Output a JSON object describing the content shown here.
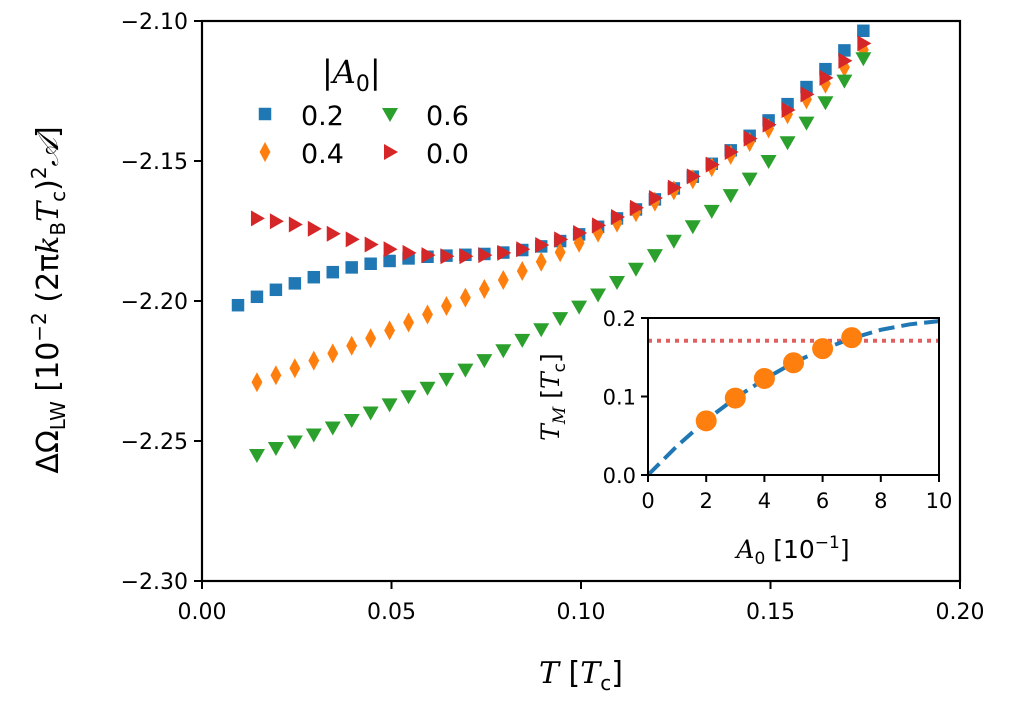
{
  "chart_data": [
    {
      "type": "scatter",
      "title": "",
      "xlabel": "T [T_c]",
      "ylabel": "ΔΩ_LW [10^−2 (2πk_B T_c)^2 𝒜]",
      "xlim": [
        0.0,
        0.2
      ],
      "ylim": [
        -2.3,
        -2.1
      ],
      "xticks": [
        "0.00",
        "0.05",
        "0.10",
        "0.15",
        "0.20"
      ],
      "yticks": [
        "−2.30",
        "−2.25",
        "−2.20",
        "−2.15",
        "−2.10"
      ],
      "grid": false,
      "legend": {
        "title": "|A0|",
        "position": "top-left",
        "columns": 2
      },
      "series": [
        {
          "name": "0.2",
          "marker": "square",
          "color": "#1f77b4",
          "x": [
            0.0095,
            0.0145,
            0.0195,
            0.0245,
            0.0295,
            0.0345,
            0.0395,
            0.0445,
            0.0495,
            0.0545,
            0.0595,
            0.0645,
            0.0695,
            0.0745,
            0.0795,
            0.0845,
            0.0895,
            0.0945,
            0.0995,
            0.1045,
            0.1095,
            0.1145,
            0.1195,
            0.1245,
            0.1295,
            0.1345,
            0.1395,
            0.1445,
            0.1495,
            0.1545,
            0.1595,
            0.1645,
            0.1695,
            0.1745
          ],
          "y": [
            -2.2015,
            -2.1985,
            -2.196,
            -2.1937,
            -2.1915,
            -2.1897,
            -2.188,
            -2.1867,
            -2.1857,
            -2.1848,
            -2.1842,
            -2.1838,
            -2.1835,
            -2.1832,
            -2.1827,
            -2.1818,
            -2.1805,
            -2.1786,
            -2.1762,
            -2.1735,
            -2.1705,
            -2.1673,
            -2.1637,
            -2.1598,
            -2.1556,
            -2.151,
            -2.1462,
            -2.141,
            -2.1355,
            -2.1297,
            -2.1236,
            -2.1172,
            -2.1105,
            -2.1035
          ]
        },
        {
          "name": "0.4",
          "marker": "thin_diamond",
          "color": "#ff7f0e",
          "x": [
            0.0145,
            0.0195,
            0.0245,
            0.0295,
            0.0345,
            0.0395,
            0.0445,
            0.0495,
            0.0545,
            0.0595,
            0.0645,
            0.0695,
            0.0745,
            0.0795,
            0.0845,
            0.0895,
            0.0945,
            0.0995,
            0.1045,
            0.1095,
            0.1145,
            0.1195,
            0.1245,
            0.1295,
            0.1345,
            0.1395,
            0.1445,
            0.1495,
            0.1545,
            0.1595,
            0.1645,
            0.1695,
            0.1745
          ],
          "y": [
            -2.229,
            -2.2265,
            -2.224,
            -2.2213,
            -2.2187,
            -2.216,
            -2.2133,
            -2.2105,
            -2.2077,
            -2.2048,
            -2.2018,
            -2.1988,
            -2.1957,
            -2.1925,
            -2.1893,
            -2.186,
            -2.1826,
            -2.1792,
            -2.1756,
            -2.172,
            -2.1683,
            -2.1645,
            -2.1605,
            -2.1565,
            -2.1522,
            -2.1478,
            -2.1432,
            -2.1384,
            -2.1333,
            -2.128,
            -2.1224,
            -2.1165,
            -2.1103
          ]
        },
        {
          "name": "0.6",
          "marker": "triangle_down",
          "color": "#2ca02c",
          "x": [
            0.0145,
            0.0195,
            0.0245,
            0.0295,
            0.0345,
            0.0395,
            0.0445,
            0.0495,
            0.0545,
            0.0595,
            0.0645,
            0.0695,
            0.0745,
            0.0795,
            0.0845,
            0.0895,
            0.0945,
            0.0995,
            0.1045,
            0.1095,
            0.1145,
            0.1195,
            0.1245,
            0.1295,
            0.1345,
            0.1395,
            0.1445,
            0.1495,
            0.1545,
            0.1595,
            0.1645,
            0.1695,
            0.1745
          ],
          "y": [
            -2.255,
            -2.2525,
            -2.2502,
            -2.2477,
            -2.2452,
            -2.2425,
            -2.2398,
            -2.2369,
            -2.234,
            -2.231,
            -2.2278,
            -2.2245,
            -2.2211,
            -2.2176,
            -2.2139,
            -2.2101,
            -2.2061,
            -2.202,
            -2.1977,
            -2.1932,
            -2.1885,
            -2.1836,
            -2.1785,
            -2.1733,
            -2.1678,
            -2.1622,
            -2.1563,
            -2.15,
            -2.1433,
            -2.1363,
            -2.129,
            -2.1213,
            -2.1133
          ]
        },
        {
          "name": "0.0",
          "marker": "triangle_right",
          "color": "#d62728",
          "x": [
            0.0145,
            0.0195,
            0.0245,
            0.0295,
            0.0345,
            0.0395,
            0.0445,
            0.0495,
            0.0545,
            0.0595,
            0.0645,
            0.0695,
            0.0745,
            0.0795,
            0.0845,
            0.0895,
            0.0945,
            0.0995,
            0.1045,
            0.1095,
            0.1145,
            0.1195,
            0.1245,
            0.1295,
            0.1345,
            0.1395,
            0.1445,
            0.1495,
            0.1545,
            0.1595,
            0.1645,
            0.1695,
            0.1745
          ],
          "y": [
            -2.1705,
            -2.1715,
            -2.1727,
            -2.1742,
            -2.176,
            -2.178,
            -2.1798,
            -2.1815,
            -2.1828,
            -2.1836,
            -2.184,
            -2.184,
            -2.1836,
            -2.1828,
            -2.1815,
            -2.18,
            -2.178,
            -2.1757,
            -2.173,
            -2.17,
            -2.1667,
            -2.1632,
            -2.1595,
            -2.1555,
            -2.1513,
            -2.1468,
            -2.142,
            -2.137,
            -2.1318,
            -2.1262,
            -2.1203,
            -2.1142,
            -2.108
          ]
        }
      ]
    },
    {
      "type": "scatter",
      "title": "",
      "xlabel": "A_0 [10^−1]",
      "ylabel": "T_M [T_c]",
      "xlim": [
        0,
        10
      ],
      "ylim": [
        0.0,
        0.2
      ],
      "xticks": [
        "0",
        "2",
        "4",
        "6",
        "8",
        "10"
      ],
      "yticks": [
        "0.0",
        "0.1",
        "0.2"
      ],
      "grid": false,
      "points": {
        "color": "#ff7f0e",
        "x": [
          2,
          3,
          4,
          5,
          6,
          7
        ],
        "y": [
          0.069,
          0.098,
          0.123,
          0.143,
          0.161,
          0.175
        ]
      },
      "fit_curve": {
        "style": "dashed",
        "color": "#1f77b4",
        "x": [
          0,
          1,
          2,
          3,
          4,
          5,
          6,
          7,
          8,
          9,
          10
        ],
        "y": [
          0.0,
          0.037,
          0.07,
          0.098,
          0.122,
          0.143,
          0.16,
          0.174,
          0.185,
          0.192,
          0.196
        ]
      },
      "reference_line": {
        "style": "dotted",
        "color": "#e06060",
        "y": 0.171
      }
    }
  ]
}
